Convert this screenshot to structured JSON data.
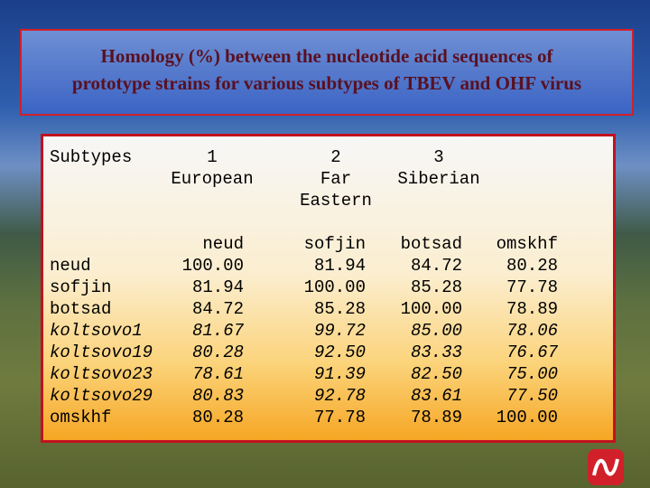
{
  "title": [
    "Homology (%) between the nucleotide acid sequences of",
    "prototype strains for various subtypes of TBEV and OHF virus"
  ],
  "table": {
    "corner": "Subtypes",
    "groups": [
      {
        "number": "1",
        "name": [
          "European"
        ]
      },
      {
        "number": "2",
        "name": [
          "Far",
          "Eastern"
        ]
      },
      {
        "number": "3",
        "name": [
          "Siberian"
        ]
      }
    ],
    "strains": [
      "neud",
      "sofjin",
      "botsad",
      "omskhf"
    ],
    "rows": [
      {
        "name": "neud",
        "italic": false,
        "values": [
          "100.00",
          "81.94",
          "84.72",
          "80.28"
        ]
      },
      {
        "name": "sofjin",
        "italic": false,
        "values": [
          "81.94",
          "100.00",
          "85.28",
          "77.78"
        ]
      },
      {
        "name": "botsad",
        "italic": false,
        "values": [
          "84.72",
          "85.28",
          "100.00",
          "78.89"
        ]
      },
      {
        "name": "koltsovo1",
        "italic": true,
        "values": [
          "81.67",
          "99.72",
          "85.00",
          "78.06"
        ]
      },
      {
        "name": "koltsovo19",
        "italic": true,
        "values": [
          "80.28",
          "92.50",
          "83.33",
          "76.67"
        ]
      },
      {
        "name": "koltsovo23",
        "italic": true,
        "values": [
          "78.61",
          "91.39",
          "82.50",
          "75.00"
        ]
      },
      {
        "name": "koltsovo29",
        "italic": true,
        "values": [
          "80.83",
          "92.78",
          "83.61",
          "77.50"
        ]
      },
      {
        "name": "omskhf",
        "italic": false,
        "values": [
          "80.28",
          "77.78",
          "78.89",
          "100.00"
        ]
      }
    ]
  }
}
